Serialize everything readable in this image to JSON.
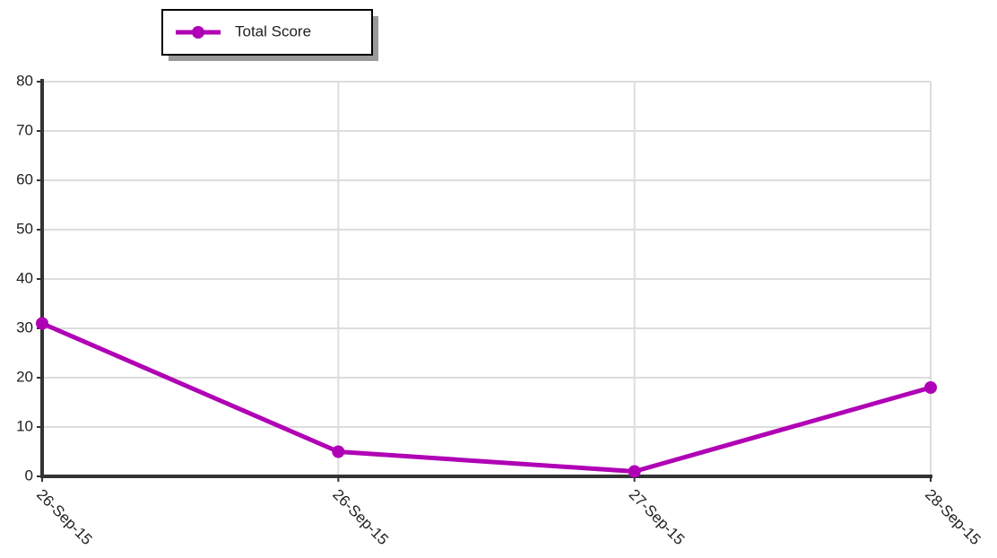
{
  "chart_data": {
    "type": "line",
    "categories": [
      "26-Sep-15",
      "26-Sep-15",
      "27-Sep-15",
      "28-Sep-15"
    ],
    "series": [
      {
        "name": "Total Score",
        "color": "#b000b5",
        "values": [
          31,
          5,
          1,
          18
        ]
      }
    ],
    "ylim": [
      0,
      80
    ],
    "yticks": [
      0,
      10,
      20,
      30,
      40,
      50,
      60,
      70,
      80
    ],
    "grid": true,
    "legend": "top-left"
  }
}
